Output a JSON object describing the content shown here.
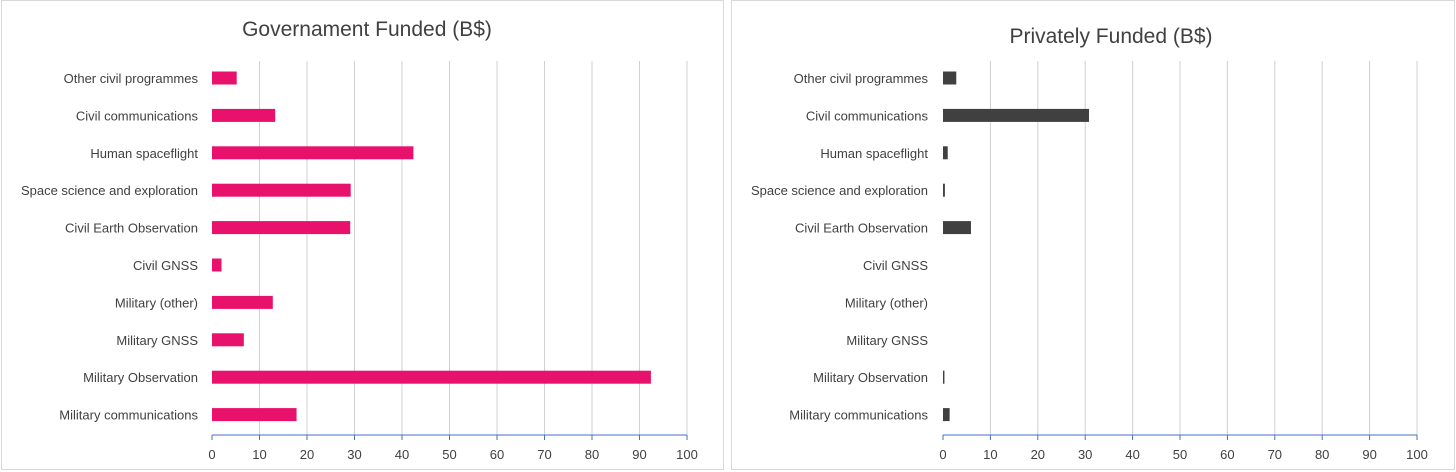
{
  "chart_data": [
    {
      "type": "bar",
      "orientation": "horizontal",
      "title": "Governament Funded (B$)",
      "categories": [
        "Other civil programmes",
        "Civil communications",
        "Human spaceflight",
        "Space science and exploration",
        "Civil Earth Observation",
        "Civil GNSS",
        "Military (other)",
        "Military GNSS",
        "Military Observation",
        "Military communications"
      ],
      "values": [
        5.2,
        13.3,
        42.4,
        29.2,
        29.1,
        2.0,
        12.8,
        6.7,
        92.4,
        17.8
      ],
      "xlim": [
        0,
        100
      ],
      "xticks": [
        "0",
        "10",
        "20",
        "30",
        "40",
        "50",
        "60",
        "70",
        "80",
        "90",
        "100"
      ],
      "grid": true,
      "bar_color": "#e8116b"
    },
    {
      "type": "bar",
      "orientation": "horizontal",
      "title": "Privately Funded (B$)",
      "categories": [
        "Other civil programmes",
        "Civil communications",
        "Human spaceflight",
        "Space science and exploration",
        "Civil Earth Observation",
        "Civil GNSS",
        "Military (other)",
        "Military GNSS",
        "Military Observation",
        "Military communications"
      ],
      "values": [
        2.8,
        30.8,
        1.0,
        0.4,
        5.9,
        0,
        0,
        0,
        0.3,
        1.4
      ],
      "xlim": [
        0,
        100
      ],
      "xticks": [
        "0",
        "10",
        "20",
        "30",
        "40",
        "50",
        "60",
        "70",
        "80",
        "90",
        "100"
      ],
      "grid": true,
      "bar_color": "#404040"
    }
  ],
  "colors": {
    "gridline": "#d0d0d0",
    "axis": "#4472c4",
    "text": "#404040"
  }
}
